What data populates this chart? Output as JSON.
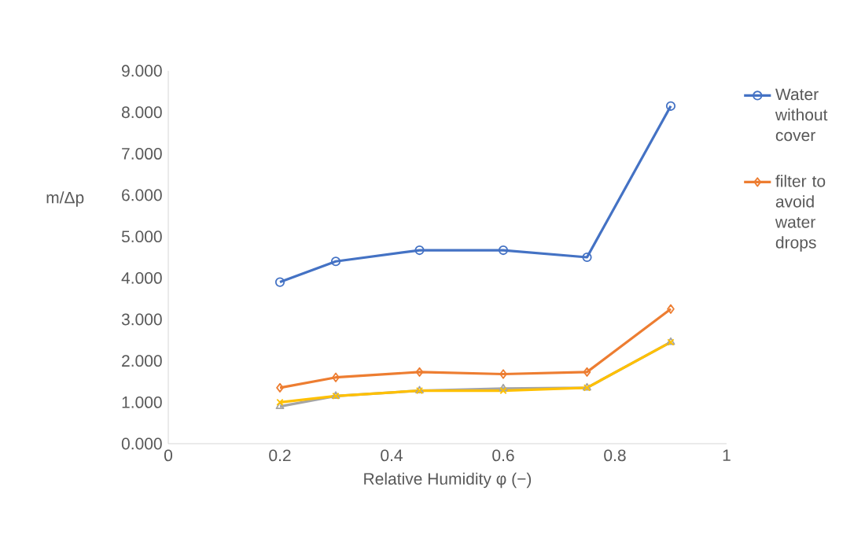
{
  "chart_data": {
    "type": "line",
    "xlabel": "Relative Humidity φ (−)",
    "ylabel": "m/Δp",
    "x": [
      0.2,
      0.3,
      0.45,
      0.6,
      0.75,
      0.9
    ],
    "series": [
      {
        "name": "Water without cover",
        "color": "#4472c4",
        "marker": "circle",
        "values": [
          3.9,
          4.4,
          4.67,
          4.67,
          4.5,
          8.15
        ]
      },
      {
        "name": "filter to avoid water drops",
        "color": "#ed7d31",
        "marker": "diamond",
        "values": [
          1.35,
          1.6,
          1.73,
          1.68,
          1.73,
          3.25
        ]
      },
      {
        "color": "#a5a5a5",
        "marker": "triangle",
        "values": [
          0.9,
          1.15,
          1.28,
          1.33,
          1.35,
          2.45
        ]
      },
      {
        "color": "#ffc000",
        "marker": "cross",
        "values": [
          1.0,
          1.15,
          1.28,
          1.28,
          1.35,
          2.45
        ]
      }
    ],
    "xlim": [
      0,
      1
    ],
    "ylim": [
      0,
      9
    ],
    "xticks": [
      0,
      0.2,
      0.4,
      0.6,
      0.8,
      1
    ],
    "yticks": [
      {
        "value": 0,
        "label": "0.000"
      },
      {
        "value": 1,
        "label": "1.000"
      },
      {
        "value": 2,
        "label": "2.000"
      },
      {
        "value": 3,
        "label": "3.000"
      },
      {
        "value": 4,
        "label": "4.000"
      },
      {
        "value": 5,
        "label": "5.000"
      },
      {
        "value": 6,
        "label": "6.000"
      },
      {
        "value": 7,
        "label": "7.000"
      },
      {
        "value": 8,
        "label": "8.000"
      },
      {
        "value": 9,
        "label": "9.000"
      }
    ],
    "grid": false,
    "legend": "right",
    "line_style": "solid"
  }
}
